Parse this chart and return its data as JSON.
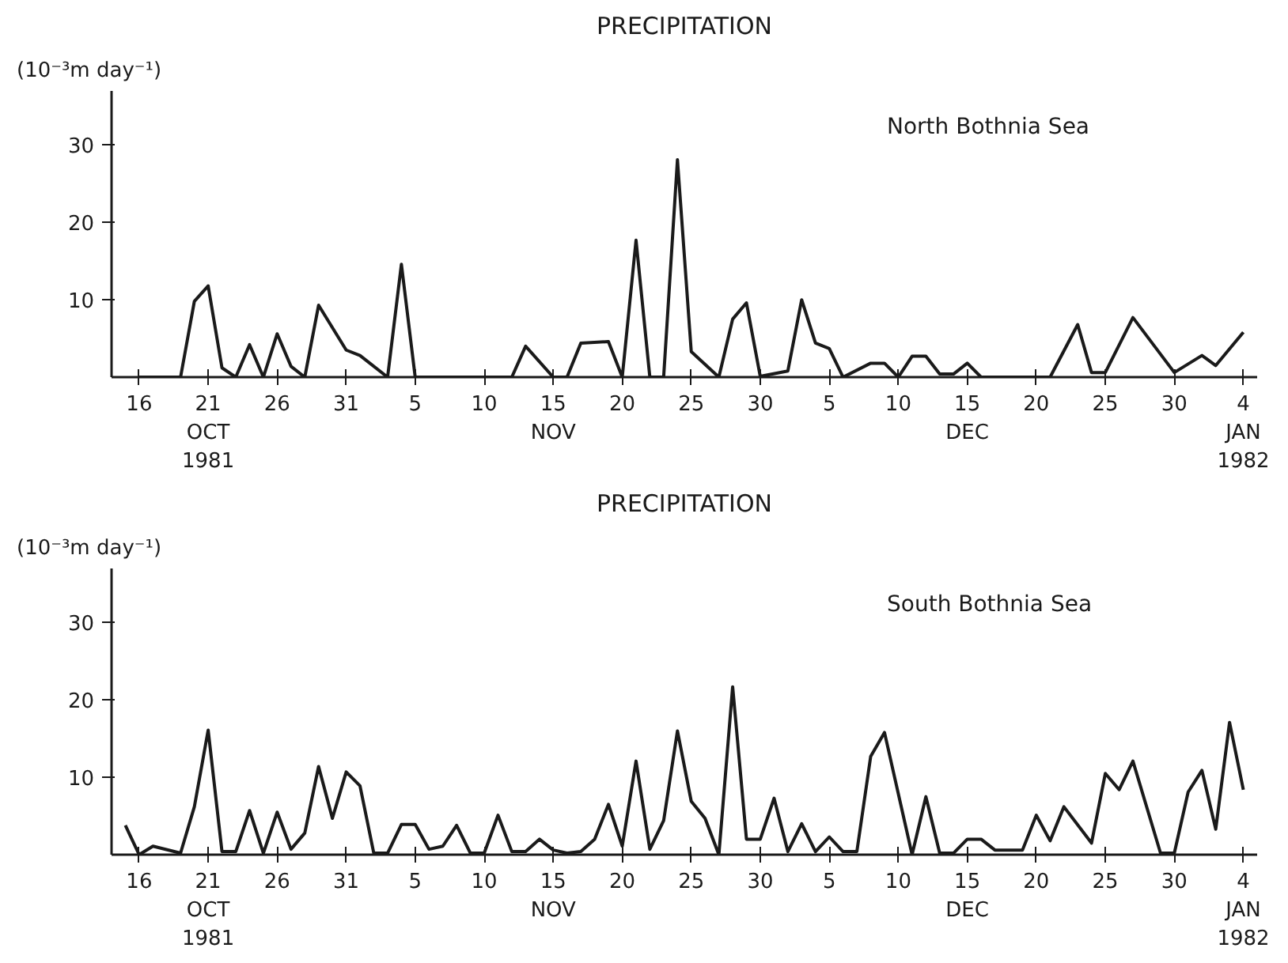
{
  "chart_data": [
    {
      "type": "line",
      "title": "PRECIPITATION",
      "ylabel": "(10⁻³m day⁻¹)",
      "xlim": [
        "1981-10-14",
        "1982-01-05"
      ],
      "ylim": [
        0,
        37
      ],
      "yticks": [
        10,
        20,
        30
      ],
      "xticks": [
        {
          "value": "1981-10-16",
          "label": "16"
        },
        {
          "value": "1981-10-21",
          "label": "21\nOCT\n1981"
        },
        {
          "value": "1981-10-26",
          "label": "26"
        },
        {
          "value": "1981-10-31",
          "label": "31"
        },
        {
          "value": "1981-11-05",
          "label": "5"
        },
        {
          "value": "1981-11-10",
          "label": "10"
        },
        {
          "value": "1981-11-15",
          "label": "15\nNOV"
        },
        {
          "value": "1981-11-20",
          "label": "20"
        },
        {
          "value": "1981-11-25",
          "label": "25"
        },
        {
          "value": "1981-11-30",
          "label": "30"
        },
        {
          "value": "1981-12-05",
          "label": "5"
        },
        {
          "value": "1981-12-10",
          "label": "10"
        },
        {
          "value": "1981-12-15",
          "label": "15\nDEC"
        },
        {
          "value": "1981-12-20",
          "label": "20"
        },
        {
          "value": "1981-12-25",
          "label": "25"
        },
        {
          "value": "1981-12-30",
          "label": "30"
        },
        {
          "value": "1982-01-04",
          "label": "4\nJAN\n1982"
        }
      ],
      "grid": false,
      "legend": false,
      "series": [
        {
          "name": "North Bothnia Sea",
          "color": "#1a1a1a",
          "x": [
            "1981-10-16",
            "1981-10-19",
            "1981-10-20",
            "1981-10-21",
            "1981-10-22",
            "1981-10-23",
            "1981-10-24",
            "1981-10-25",
            "1981-10-26",
            "1981-10-27",
            "1981-10-28",
            "1981-10-29",
            "1981-10-31",
            "1981-11-01",
            "1981-11-03",
            "1981-11-04",
            "1981-11-05",
            "1981-11-12",
            "1981-11-13",
            "1981-11-15",
            "1981-11-16",
            "1981-11-17",
            "1981-11-19",
            "1981-11-20",
            "1981-11-21",
            "1981-11-22",
            "1981-11-23",
            "1981-11-24",
            "1981-11-25",
            "1981-11-27",
            "1981-11-28",
            "1981-11-29",
            "1981-11-30",
            "1981-12-02",
            "1981-12-03",
            "1981-12-04",
            "1981-12-05",
            "1981-12-06",
            "1981-12-08",
            "1981-12-09",
            "1981-12-10",
            "1981-12-11",
            "1981-12-12",
            "1981-12-13",
            "1981-12-14",
            "1981-12-15",
            "1981-12-16",
            "1981-12-21",
            "1981-12-23",
            "1981-12-24",
            "1981-12-25",
            "1981-12-27",
            "1981-12-30",
            "1982-01-01",
            "1982-01-02",
            "1982-01-04"
          ],
          "values": [
            0,
            0,
            9.8,
            11.8,
            1.2,
            0,
            4.2,
            0,
            5.6,
            1.4,
            0,
            9.3,
            3.5,
            2.8,
            0,
            14.6,
            0,
            0,
            4.0,
            0,
            0,
            4.4,
            4.6,
            0,
            17.7,
            0,
            0,
            28.1,
            3.3,
            0,
            7.5,
            9.6,
            0.1,
            0.8,
            10,
            4.4,
            3.7,
            0,
            1.8,
            1.8,
            0,
            2.7,
            2.7,
            0.4,
            0.4,
            1.8,
            0,
            0,
            6.8,
            0.6,
            0.6,
            7.7,
            0.6,
            2.8,
            1.5,
            5.8
          ]
        }
      ]
    },
    {
      "type": "line",
      "title": "PRECIPITATION",
      "ylabel": "(10⁻³m day⁻¹)",
      "xlim": [
        "1981-10-14",
        "1982-01-05"
      ],
      "ylim": [
        0,
        37
      ],
      "yticks": [
        10,
        20,
        30
      ],
      "xticks": [
        {
          "value": "1981-10-16",
          "label": "16"
        },
        {
          "value": "1981-10-21",
          "label": "21\nOCT\n1981"
        },
        {
          "value": "1981-10-26",
          "label": "26"
        },
        {
          "value": "1981-10-31",
          "label": "31"
        },
        {
          "value": "1981-11-05",
          "label": "5"
        },
        {
          "value": "1981-11-10",
          "label": "10"
        },
        {
          "value": "1981-11-15",
          "label": "15\nNOV"
        },
        {
          "value": "1981-11-20",
          "label": "20"
        },
        {
          "value": "1981-11-25",
          "label": "25"
        },
        {
          "value": "1981-11-30",
          "label": "30"
        },
        {
          "value": "1981-12-05",
          "label": "5"
        },
        {
          "value": "1981-12-10",
          "label": "10"
        },
        {
          "value": "1981-12-15",
          "label": "15\nDEC"
        },
        {
          "value": "1981-12-20",
          "label": "20"
        },
        {
          "value": "1981-12-25",
          "label": "25"
        },
        {
          "value": "1981-12-30",
          "label": "30"
        },
        {
          "value": "1982-01-04",
          "label": "4\nJAN\n1982"
        }
      ],
      "grid": false,
      "legend": false,
      "series": [
        {
          "name": "South Bothnia Sea",
          "color": "#1a1a1a",
          "x": [
            "1981-10-15",
            "1981-10-16",
            "1981-10-17",
            "1981-10-19",
            "1981-10-20",
            "1981-10-21",
            "1981-10-22",
            "1981-10-23",
            "1981-10-24",
            "1981-10-25",
            "1981-10-26",
            "1981-10-27",
            "1981-10-28",
            "1981-10-29",
            "1981-10-30",
            "1981-10-31",
            "1981-11-01",
            "1981-11-02",
            "1981-11-03",
            "1981-11-04",
            "1981-11-05",
            "1981-11-06",
            "1981-11-07",
            "1981-11-08",
            "1981-11-09",
            "1981-11-10",
            "1981-11-11",
            "1981-11-12",
            "1981-11-13",
            "1981-11-14",
            "1981-11-15",
            "1981-11-16",
            "1981-11-17",
            "1981-11-18",
            "1981-11-19",
            "1981-11-20",
            "1981-11-21",
            "1981-11-22",
            "1981-11-23",
            "1981-11-24",
            "1981-11-25",
            "1981-11-26",
            "1981-11-27",
            "1981-11-28",
            "1981-11-29",
            "1981-11-30",
            "1981-12-01",
            "1981-12-02",
            "1981-12-03",
            "1981-12-04",
            "1981-12-05",
            "1981-12-06",
            "1981-12-07",
            "1981-12-08",
            "1981-12-09",
            "1981-12-11",
            "1981-12-12",
            "1981-12-13",
            "1981-12-14",
            "1981-12-15",
            "1981-12-16",
            "1981-12-17",
            "1981-12-19",
            "1981-12-20",
            "1981-12-21",
            "1981-12-22",
            "1981-12-24",
            "1981-12-25",
            "1981-12-26",
            "1981-12-27",
            "1981-12-29",
            "1981-12-30",
            "1981-12-31",
            "1982-01-01",
            "1982-01-02",
            "1982-01-03",
            "1982-01-04"
          ],
          "values": [
            3.8,
            0,
            1.1,
            0.2,
            6.2,
            16.1,
            0.4,
            0.4,
            5.7,
            0.2,
            5.5,
            0.7,
            2.8,
            11.4,
            4.7,
            10.7,
            8.9,
            0.2,
            0.2,
            3.9,
            3.9,
            0.7,
            1.1,
            3.8,
            0.2,
            0.2,
            5.1,
            0.4,
            0.4,
            2.0,
            0.6,
            0.2,
            0.4,
            2.0,
            6.5,
            1.1,
            12.1,
            0.7,
            4.4,
            16.0,
            6.9,
            4.7,
            0,
            21.7,
            2.0,
            2.0,
            7.3,
            0.4,
            4.0,
            0.4,
            2.3,
            0.4,
            0.4,
            12.7,
            15.8,
            0,
            7.5,
            0.2,
            0.2,
            2.0,
            2.0,
            0.6,
            0.6,
            5.1,
            1.8,
            6.2,
            1.5,
            10.5,
            8.4,
            12.1,
            0.2,
            0.2,
            8.1,
            10.9,
            3.3,
            17.1,
            8.4
          ]
        }
      ]
    }
  ]
}
